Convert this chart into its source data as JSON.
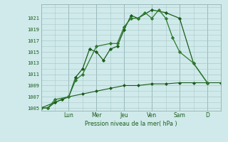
{
  "bg_color": "#d0eaeb",
  "grid_color": "#aac8ca",
  "line_color1": "#1a5c1a",
  "line_color2": "#1a5c1a",
  "line_color3": "#2d7a2d",
  "xlabel": "Pression niveau de la mer( hPa )",
  "ylim": [
    1004.5,
    1023.5
  ],
  "yticks": [
    1005,
    1007,
    1009,
    1011,
    1013,
    1015,
    1017,
    1019,
    1021
  ],
  "day_labels": [
    "Lun",
    "Mer",
    "Jeu",
    "Ven",
    "Sam",
    "D"
  ],
  "day_positions": [
    2,
    4,
    6,
    8,
    10,
    12
  ],
  "xlim": [
    0,
    13
  ],
  "series1_x": [
    0,
    0.5,
    1,
    1.5,
    2,
    2.5,
    3,
    3.5,
    4,
    4.5,
    5,
    5.5,
    6,
    6.5,
    7,
    8,
    9,
    10,
    11,
    12
  ],
  "series1_y": [
    1005,
    1005,
    1006,
    1006.5,
    1007,
    1010.5,
    1012,
    1015.5,
    1015,
    1013.5,
    1015.5,
    1016,
    1019,
    1021.5,
    1021,
    1022.5,
    1022,
    1021,
    1013,
    1009.5
  ],
  "series2_x": [
    0,
    0.5,
    1,
    2,
    2.5,
    3,
    4,
    5,
    5.5,
    6,
    6.5,
    7,
    7.5,
    8,
    8.5,
    9,
    9.5,
    10,
    11,
    12
  ],
  "series2_y": [
    1005,
    1005,
    1006.5,
    1007,
    1010,
    1011,
    1016,
    1016.5,
    1016.5,
    1019.5,
    1021,
    1021,
    1022,
    1021,
    1022.5,
    1021,
    1017.5,
    1015,
    1013,
    1009.5
  ],
  "series3_x": [
    0,
    1,
    2,
    3,
    4,
    5,
    6,
    7,
    8,
    9,
    10,
    11,
    12,
    13
  ],
  "series3_y": [
    1005,
    1006,
    1007,
    1007.5,
    1008,
    1008.5,
    1009,
    1009,
    1009.3,
    1009.3,
    1009.5,
    1009.5,
    1009.5,
    1009.5
  ]
}
